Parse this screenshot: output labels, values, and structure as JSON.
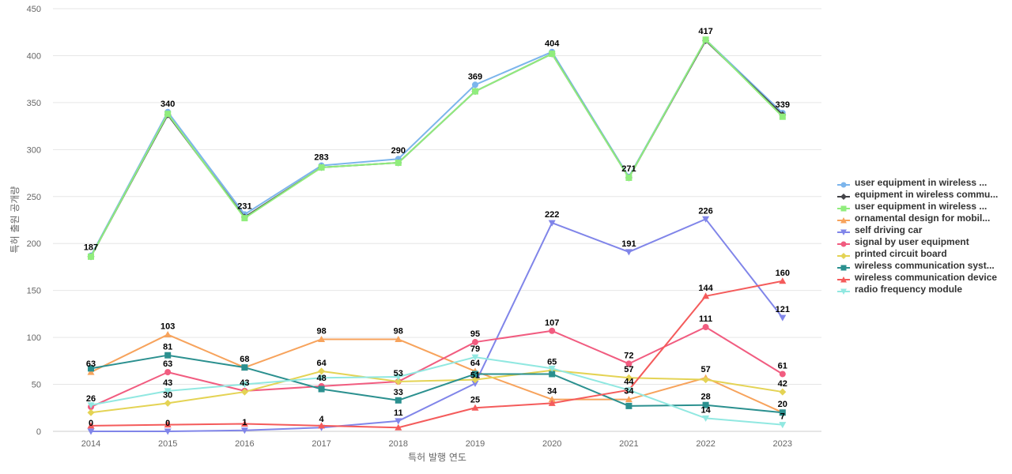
{
  "chart_data": {
    "type": "line",
    "xlabel": "특허 발행 연도",
    "ylabel": "특허 출원 공개량",
    "ylim": [
      0,
      450
    ],
    "yticks": [
      0,
      50,
      100,
      150,
      200,
      250,
      300,
      350,
      400,
      450
    ],
    "x": [
      "2014",
      "2015",
      "2016",
      "2017",
      "2018",
      "2019",
      "2020",
      "2021",
      "2022",
      "2023"
    ],
    "grid": true,
    "legend_position": "right",
    "series": [
      {
        "name": "user equipment in wireless ...",
        "color": "#7cb5ec",
        "marker": "circle",
        "values": [
          187,
          340,
          231,
          283,
          290,
          369,
          404,
          271,
          417,
          339
        ],
        "labeled": true
      },
      {
        "name": "equipment in wireless commu...",
        "color": "#434348",
        "marker": "diamond",
        "values": [
          186,
          337,
          228,
          281,
          286,
          362,
          402,
          270,
          416,
          337
        ],
        "labeled": false
      },
      {
        "name": "user equipment in wireless ...",
        "color": "#90ed7d",
        "marker": "square",
        "values": [
          186,
          338,
          227,
          281,
          286,
          362,
          402,
          270,
          417,
          335
        ],
        "labeled": false
      },
      {
        "name": "ornamental design for mobil...",
        "color": "#f7a35c",
        "marker": "triangle",
        "values": [
          63,
          103,
          68,
          98,
          98,
          64,
          34,
          34,
          57,
          20
        ],
        "labeled": true
      },
      {
        "name": "self driving car",
        "color": "#8085e9",
        "marker": "triangle-down",
        "values": [
          0,
          0,
          1,
          4,
          11,
          51,
          222,
          191,
          226,
          121
        ],
        "labeled": true
      },
      {
        "name": "signal by user equipment",
        "color": "#f15c80",
        "marker": "circle",
        "values": [
          26,
          63,
          43,
          48,
          53,
          95,
          107,
          72,
          111,
          61
        ],
        "labeled": true
      },
      {
        "name": "printed circuit board",
        "color": "#e4d354",
        "marker": "diamond",
        "values": [
          20,
          30,
          42,
          64,
          53,
          55,
          65,
          57,
          55,
          42
        ],
        "labeled": false
      },
      {
        "name": "wireless communication syst...",
        "color": "#2b908f",
        "marker": "square",
        "values": [
          67,
          81,
          68,
          45,
          33,
          61,
          61,
          27,
          28,
          20
        ],
        "labeled": true
      },
      {
        "name": "wireless communication device",
        "color": "#f45b5b",
        "marker": "triangle",
        "values": [
          6,
          7,
          8,
          6,
          4,
          25,
          30,
          44,
          144,
          160
        ],
        "labeled": true
      },
      {
        "name": "radio frequency module",
        "color": "#91e8e1",
        "marker": "triangle-down",
        "values": [
          28,
          43,
          50,
          57,
          58,
          79,
          67,
          44,
          14,
          7
        ],
        "labeled": true
      }
    ],
    "point_labels": [
      {
        "x": "2014",
        "text": "187",
        "value": 187
      },
      {
        "x": "2015",
        "text": "340",
        "value": 340
      },
      {
        "x": "2016",
        "text": "231",
        "value": 231
      },
      {
        "x": "2017",
        "text": "283",
        "value": 283
      },
      {
        "x": "2018",
        "text": "290",
        "value": 290
      },
      {
        "x": "2019",
        "text": "369",
        "value": 369
      },
      {
        "x": "2020",
        "text": "404",
        "value": 404
      },
      {
        "x": "2021",
        "text": "271",
        "value": 271
      },
      {
        "x": "2022",
        "text": "417",
        "value": 417
      },
      {
        "x": "2023",
        "text": "339",
        "value": 339
      },
      {
        "x": "2015",
        "text": "103",
        "value": 103
      },
      {
        "x": "2017",
        "text": "98",
        "value": 98
      },
      {
        "x": "2018",
        "text": "98",
        "value": 98
      },
      {
        "x": "2020",
        "text": "222",
        "value": 222
      },
      {
        "x": "2021",
        "text": "191",
        "value": 191
      },
      {
        "x": "2022",
        "text": "226",
        "value": 226
      },
      {
        "x": "2023",
        "text": "121",
        "value": 121
      },
      {
        "x": "2023",
        "text": "160",
        "value": 160
      },
      {
        "x": "2022",
        "text": "144",
        "value": 144
      },
      {
        "x": "2022",
        "text": "111",
        "value": 111
      },
      {
        "x": "2020",
        "text": "107",
        "value": 107
      },
      {
        "x": "2019",
        "text": "95",
        "value": 95
      },
      {
        "x": "2015",
        "text": "81",
        "value": 81
      },
      {
        "x": "2019",
        "text": "79",
        "value": 79
      },
      {
        "x": "2021",
        "text": "72",
        "value": 72
      },
      {
        "x": "2016",
        "text": "68",
        "value": 68
      },
      {
        "x": "2020",
        "text": "65",
        "value": 65
      },
      {
        "x": "2014",
        "text": "63",
        "value": 63
      },
      {
        "x": "2015",
        "text": "63",
        "value": 63
      },
      {
        "x": "2017",
        "text": "64",
        "value": 64
      },
      {
        "x": "2019",
        "text": "64",
        "value": 64
      },
      {
        "x": "2023",
        "text": "61",
        "value": 61
      },
      {
        "x": "2021",
        "text": "57",
        "value": 57
      },
      {
        "x": "2022",
        "text": "57",
        "value": 57
      },
      {
        "x": "2018",
        "text": "53",
        "value": 53
      },
      {
        "x": "2019",
        "text": "51",
        "value": 51
      },
      {
        "x": "2017",
        "text": "48",
        "value": 48
      },
      {
        "x": "2021",
        "text": "44",
        "value": 44
      },
      {
        "x": "2015",
        "text": "43",
        "value": 43
      },
      {
        "x": "2016",
        "text": "43",
        "value": 43
      },
      {
        "x": "2023",
        "text": "42",
        "value": 42
      },
      {
        "x": "2020",
        "text": "34",
        "value": 34
      },
      {
        "x": "2021",
        "text": "34",
        "value": 34
      },
      {
        "x": "2018",
        "text": "33",
        "value": 33
      },
      {
        "x": "2015",
        "text": "30",
        "value": 30
      },
      {
        "x": "2022",
        "text": "28",
        "value": 28
      },
      {
        "x": "2014",
        "text": "26",
        "value": 26
      },
      {
        "x": "2019",
        "text": "25",
        "value": 25
      },
      {
        "x": "2023",
        "text": "20",
        "value": 20
      },
      {
        "x": "2022",
        "text": "14",
        "value": 14
      },
      {
        "x": "2018",
        "text": "11",
        "value": 11
      },
      {
        "x": "2023",
        "text": "7",
        "value": 7
      },
      {
        "x": "2017",
        "text": "4",
        "value": 4
      },
      {
        "x": "2016",
        "text": "1",
        "value": 1
      },
      {
        "x": "2014",
        "text": "0",
        "value": 0
      },
      {
        "x": "2015",
        "text": "0",
        "value": 0
      }
    ]
  }
}
